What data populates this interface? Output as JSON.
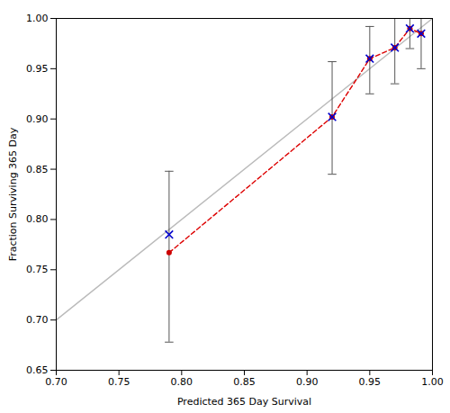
{
  "chart_data": {
    "type": "scatter",
    "xlabel": "Predicted 365 Day Survival",
    "ylabel": "Fraction Surviving 365 Day",
    "xlim": [
      0.7,
      1.0
    ],
    "ylim": [
      0.65,
      1.0
    ],
    "xticks": [
      {
        "value": 0.7,
        "label": "0.70"
      },
      0.75,
      {
        "value": 0.8,
        "label": "0.80"
      },
      0.85,
      {
        "value": 0.9,
        "label": "0.90"
      },
      0.95,
      {
        "value": 1.0,
        "label": "1.00"
      }
    ],
    "yticks": [
      0.65,
      {
        "value": 0.7,
        "label": "0.70"
      },
      0.75,
      {
        "value": 0.8,
        "label": "0.80"
      },
      0.85,
      {
        "value": 0.9,
        "label": "0.90"
      },
      0.95,
      {
        "value": 1.0,
        "label": "1.00"
      }
    ],
    "grid": false,
    "series": [
      {
        "type": "line",
        "x": [
          0.7,
          1.0
        ],
        "y": [
          0.7,
          1.0
        ],
        "color": "#bbbbbb",
        "line_style": "solid"
      },
      {
        "type": "line",
        "x": [
          0.79,
          0.92,
          0.95,
          0.97,
          0.982,
          0.991
        ],
        "y": [
          0.767,
          0.902,
          0.96,
          0.971,
          0.99,
          0.985
        ],
        "color": "#dd0000",
        "line_style": "dashed"
      },
      {
        "type": "errorbar",
        "x": [
          0.79,
          0.92,
          0.95,
          0.97,
          0.982,
          0.991
        ],
        "ci_lower": [
          0.678,
          0.845,
          0.925,
          0.935,
          0.97,
          0.95
        ],
        "ci_upper": [
          0.848,
          0.957,
          0.992,
          1.0,
          1.0,
          1.0
        ],
        "color": "#555555"
      },
      {
        "type": "scatter",
        "x": [
          0.79,
          0.92,
          0.95,
          0.97,
          0.982,
          0.991
        ],
        "y": [
          0.767,
          0.902,
          0.96,
          0.971,
          0.99,
          0.985
        ],
        "color": "#cc0000",
        "marker": "o"
      },
      {
        "type": "scatter",
        "x": [
          0.79,
          0.92,
          0.95,
          0.97,
          0.982,
          0.991
        ],
        "y": [
          0.785,
          0.902,
          0.96,
          0.971,
          0.99,
          0.985
        ],
        "color": "#0000cc",
        "marker": "x"
      }
    ]
  }
}
